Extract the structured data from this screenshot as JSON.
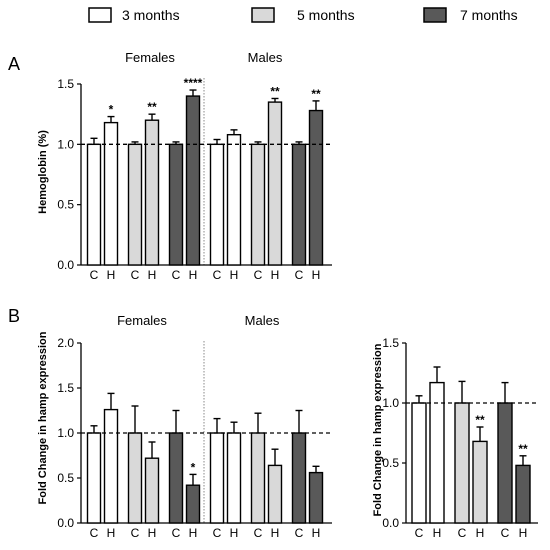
{
  "legend": {
    "items": [
      {
        "label": "3 months",
        "color": "#ffffff"
      },
      {
        "label": "5 months",
        "color": "#d9d9d9"
      },
      {
        "label": "7 months",
        "color": "#595959"
      }
    ]
  },
  "colors": {
    "m3": "#ffffff",
    "m5": "#d9d9d9",
    "m7": "#595959",
    "stroke": "#000000"
  },
  "chart_data": [
    {
      "panel": "A",
      "type": "bar",
      "ylabel": "Hemoglobin (%)",
      "ylim": [
        0.0,
        1.5
      ],
      "yticks": [
        "0.0",
        "0.5",
        "1.0",
        "1.5"
      ],
      "reference_line": 1.0,
      "groups": [
        {
          "label": "Females"
        },
        {
          "label": "Males"
        }
      ],
      "categories": [
        "C",
        "H",
        "C",
        "H",
        "C",
        "H",
        "C",
        "H",
        "C",
        "H",
        "C",
        "H"
      ],
      "bars": [
        {
          "group": "Females",
          "age": "3 months",
          "cond": "C",
          "value": 1.0,
          "error": 0.05,
          "sig": ""
        },
        {
          "group": "Females",
          "age": "3 months",
          "cond": "H",
          "value": 1.18,
          "error": 0.05,
          "sig": "*"
        },
        {
          "group": "Females",
          "age": "5 months",
          "cond": "C",
          "value": 1.0,
          "error": 0.02,
          "sig": ""
        },
        {
          "group": "Females",
          "age": "5 months",
          "cond": "H",
          "value": 1.2,
          "error": 0.05,
          "sig": "**"
        },
        {
          "group": "Females",
          "age": "7 months",
          "cond": "C",
          "value": 1.0,
          "error": 0.02,
          "sig": ""
        },
        {
          "group": "Females",
          "age": "7 months",
          "cond": "H",
          "value": 1.4,
          "error": 0.05,
          "sig": "****"
        },
        {
          "group": "Males",
          "age": "3 months",
          "cond": "C",
          "value": 1.0,
          "error": 0.04,
          "sig": ""
        },
        {
          "group": "Males",
          "age": "3 months",
          "cond": "H",
          "value": 1.08,
          "error": 0.04,
          "sig": ""
        },
        {
          "group": "Males",
          "age": "5 months",
          "cond": "C",
          "value": 1.0,
          "error": 0.02,
          "sig": ""
        },
        {
          "group": "Males",
          "age": "5 months",
          "cond": "H",
          "value": 1.35,
          "error": 0.03,
          "sig": "**"
        },
        {
          "group": "Males",
          "age": "7 months",
          "cond": "C",
          "value": 1.0,
          "error": 0.02,
          "sig": ""
        },
        {
          "group": "Males",
          "age": "7 months",
          "cond": "H",
          "value": 1.28,
          "error": 0.08,
          "sig": "**"
        }
      ]
    },
    {
      "panel": "B",
      "type": "bar",
      "ylabel": "Fold Change in hamp expression",
      "ylim": [
        0.0,
        2.0
      ],
      "yticks": [
        "0.0",
        "0.5",
        "1.0",
        "1.5",
        "2.0"
      ],
      "reference_line": 1.0,
      "groups": [
        {
          "label": "Females"
        },
        {
          "label": "Males"
        }
      ],
      "categories": [
        "C",
        "H",
        "C",
        "H",
        "C",
        "H",
        "C",
        "H",
        "C",
        "H",
        "C",
        "H"
      ],
      "bars": [
        {
          "group": "Females",
          "age": "3 months",
          "cond": "C",
          "value": 1.0,
          "error": 0.08,
          "sig": ""
        },
        {
          "group": "Females",
          "age": "3 months",
          "cond": "H",
          "value": 1.26,
          "error": 0.18,
          "sig": ""
        },
        {
          "group": "Females",
          "age": "5 months",
          "cond": "C",
          "value": 1.0,
          "error": 0.3,
          "sig": ""
        },
        {
          "group": "Females",
          "age": "5 months",
          "cond": "H",
          "value": 0.72,
          "error": 0.18,
          "sig": ""
        },
        {
          "group": "Females",
          "age": "7 months",
          "cond": "C",
          "value": 1.0,
          "error": 0.25,
          "sig": ""
        },
        {
          "group": "Females",
          "age": "7 months",
          "cond": "H",
          "value": 0.42,
          "error": 0.12,
          "sig": "*"
        },
        {
          "group": "Males",
          "age": "3 months",
          "cond": "C",
          "value": 1.0,
          "error": 0.16,
          "sig": ""
        },
        {
          "group": "Males",
          "age": "3 months",
          "cond": "H",
          "value": 1.0,
          "error": 0.12,
          "sig": ""
        },
        {
          "group": "Males",
          "age": "5 months",
          "cond": "C",
          "value": 1.0,
          "error": 0.22,
          "sig": ""
        },
        {
          "group": "Males",
          "age": "5 months",
          "cond": "H",
          "value": 0.64,
          "error": 0.18,
          "sig": ""
        },
        {
          "group": "Males",
          "age": "7 months",
          "cond": "C",
          "value": 1.0,
          "error": 0.25,
          "sig": ""
        },
        {
          "group": "Males",
          "age": "7 months",
          "cond": "H",
          "value": 0.56,
          "error": 0.07,
          "sig": ""
        }
      ]
    },
    {
      "panel": "B-right",
      "type": "bar",
      "ylabel": "Fold Change in hamp expression",
      "ylim": [
        0.0,
        1.5
      ],
      "yticks": [
        "0.0",
        "0.5",
        "1.0",
        "1.5"
      ],
      "reference_line": 1.0,
      "categories": [
        "C",
        "H",
        "C",
        "H",
        "C",
        "H"
      ],
      "bars": [
        {
          "age": "3 months",
          "cond": "C",
          "value": 1.0,
          "error": 0.06,
          "sig": ""
        },
        {
          "age": "3 months",
          "cond": "H",
          "value": 1.17,
          "error": 0.13,
          "sig": ""
        },
        {
          "age": "5 months",
          "cond": "C",
          "value": 1.0,
          "error": 0.18,
          "sig": ""
        },
        {
          "age": "5 months",
          "cond": "H",
          "value": 0.68,
          "error": 0.12,
          "sig": "**"
        },
        {
          "age": "7 months",
          "cond": "C",
          "value": 1.0,
          "error": 0.17,
          "sig": ""
        },
        {
          "age": "7 months",
          "cond": "H",
          "value": 0.48,
          "error": 0.08,
          "sig": "**"
        }
      ]
    }
  ]
}
